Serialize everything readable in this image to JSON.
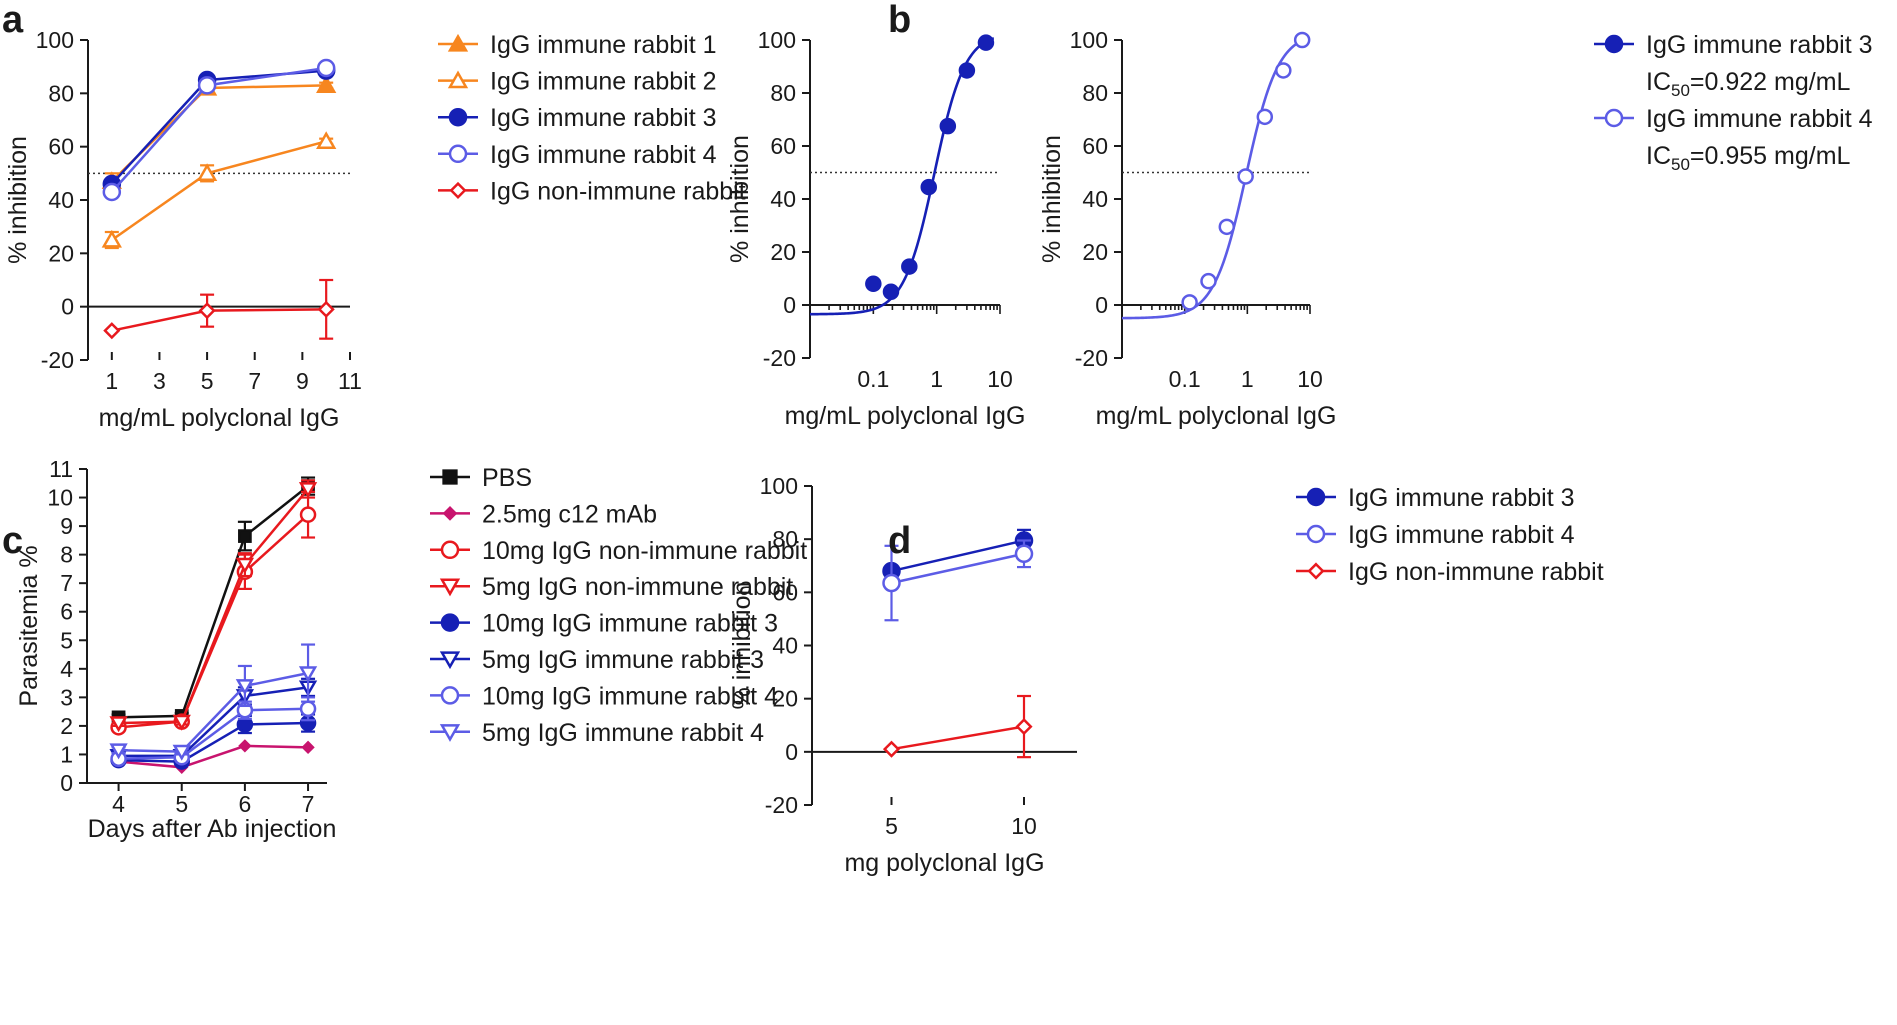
{
  "figure": {
    "letters": [
      "a",
      "b",
      "c",
      "d"
    ]
  },
  "colors": {
    "orange": "#F7861F",
    "red": "#E8191E",
    "navy": "#1620B5",
    "periwinkle": "#5C5CE6",
    "black": "#111111",
    "magenta": "#C8146E"
  },
  "chart_data": [
    {
      "id": "a",
      "type": "line",
      "xlabel": "mg/mL polyclonal IgG",
      "ylabel": "% inhibition",
      "xlim": [
        0,
        11
      ],
      "ylim": [
        -20,
        100
      ],
      "xticks": [
        1,
        3,
        5,
        7,
        9,
        11
      ],
      "yticks": [
        -20,
        0,
        20,
        40,
        60,
        80,
        100
      ],
      "reference_line_y": 50,
      "x": [
        1,
        5,
        10
      ],
      "series": [
        {
          "name": "IgG immune rabbit 1",
          "color": "orange",
          "marker": "triangle-filled",
          "values": [
            47,
            82,
            83
          ],
          "errors": [
            3,
            1,
            1
          ]
        },
        {
          "name": "IgG immune rabbit 2",
          "color": "orange",
          "marker": "triangle-open",
          "values": [
            25,
            50,
            62
          ],
          "errors": [
            3,
            3,
            1
          ]
        },
        {
          "name": "IgG immune rabbit 3",
          "color": "navy",
          "marker": "circle-filled",
          "values": [
            46,
            85,
            88.5
          ],
          "errors": [
            1,
            1,
            1
          ]
        },
        {
          "name": "IgG immune rabbit 4",
          "color": "periwinkle",
          "marker": "circle-open",
          "values": [
            43,
            83,
            89.5
          ],
          "errors": [
            1,
            1,
            1
          ]
        },
        {
          "name": "IgG non-immune rabbit",
          "color": "red",
          "marker": "diamond-open",
          "values": [
            -9,
            -1.5,
            -1
          ],
          "errors": [
            0,
            6,
            11
          ]
        }
      ]
    },
    {
      "id": "b-left",
      "type": "scatter",
      "xscale": "log",
      "xlabel": "mg/mL polyclonal IgG",
      "ylabel": "% inhibition",
      "xlim": [
        0.01,
        10
      ],
      "ylim": [
        -20,
        100
      ],
      "xticks": [
        0.1,
        1,
        10
      ],
      "xtick_labels": [
        "0.1",
        "1",
        "10"
      ],
      "yticks": [
        -20,
        0,
        20,
        40,
        60,
        80,
        100
      ],
      "reference_line_y": 50,
      "series": [
        {
          "name": "IgG immune rabbit 3",
          "color": "navy",
          "marker": "circle-filled",
          "x": [
            0.1,
            0.19,
            0.37,
            0.75,
            1.5,
            3,
            6
          ],
          "values": [
            8,
            5,
            14.5,
            44.5,
            67.5,
            88.5,
            99
          ],
          "fit": {
            "bottom": -3.5,
            "top": 103,
            "ic50": 0.922,
            "hill": 1.8
          }
        }
      ],
      "legend": [
        {
          "label": "IgG immune rabbit 3",
          "color": "navy",
          "marker": "circle-filled"
        },
        {
          "label_main": "IC",
          "label_sub": "50",
          "label_rest": "=0.922 mg/mL"
        }
      ]
    },
    {
      "id": "b-right",
      "type": "scatter",
      "xscale": "log",
      "xlabel": "mg/mL polyclonal IgG",
      "ylabel": "% inhibition",
      "xlim": [
        0.01,
        10
      ],
      "ylim": [
        -20,
        100
      ],
      "xticks": [
        0.1,
        1,
        10
      ],
      "xtick_labels": [
        "0.1",
        "1",
        "10"
      ],
      "yticks": [
        -20,
        0,
        20,
        40,
        60,
        80,
        100
      ],
      "reference_line_y": 50,
      "series": [
        {
          "name": "IgG immune rabbit 4",
          "color": "periwinkle",
          "marker": "circle-open",
          "x": [
            0.12,
            0.24,
            0.47,
            0.94,
            1.9,
            3.75,
            7.5
          ],
          "values": [
            1,
            9,
            29.5,
            48.5,
            71,
            88.5,
            100
          ],
          "fit": {
            "bottom": -5,
            "top": 103,
            "ic50": 0.955,
            "hill": 1.7
          }
        }
      ],
      "legend": [
        {
          "label": "IgG immune rabbit 4",
          "color": "periwinkle",
          "marker": "circle-open"
        },
        {
          "label_main": "IC",
          "label_sub": "50",
          "label_rest": "=0.955 mg/mL"
        }
      ]
    },
    {
      "id": "c",
      "type": "line",
      "xlabel": "Days after Ab injection",
      "ylabel": "Parasitemia %",
      "xlim": [
        3.5,
        7.3
      ],
      "ylim": [
        0,
        11
      ],
      "xticks": [
        4,
        5,
        6,
        7
      ],
      "yticks": [
        0,
        1,
        2,
        3,
        4,
        5,
        6,
        7,
        8,
        9,
        10,
        11
      ],
      "x": [
        4,
        5,
        6,
        7
      ],
      "series": [
        {
          "name": "PBS",
          "color": "black",
          "marker": "square-filled",
          "values": [
            2.3,
            2.35,
            8.65,
            10.4
          ],
          "errors": [
            0.1,
            0.1,
            0.5,
            0.3
          ]
        },
        {
          "name": "2.5mg c12 mAb",
          "color": "magenta",
          "marker": "diamond-filled",
          "values": [
            0.75,
            0.55,
            1.3,
            1.25
          ],
          "errors": [
            0,
            0,
            0,
            0
          ]
        },
        {
          "name": "10mg IgG non-immune rabbit",
          "color": "red",
          "marker": "circle-open",
          "values": [
            1.95,
            2.15,
            7.4,
            9.4
          ],
          "errors": [
            0.1,
            0.1,
            0.6,
            0.8
          ]
        },
        {
          "name": "5mg IgG non-immune rabbit",
          "color": "red",
          "marker": "triangle-down-open",
          "values": [
            2.1,
            2.15,
            7.65,
            10.3
          ],
          "errors": [
            0.1,
            0.1,
            0.4,
            0.3
          ]
        },
        {
          "name": "10mg IgG immune rabbit 3",
          "color": "navy",
          "marker": "circle-filled",
          "values": [
            0.8,
            0.75,
            2.05,
            2.1
          ],
          "errors": [
            0.1,
            0.1,
            0.3,
            0.3
          ]
        },
        {
          "name": "5mg IgG immune rabbit 3",
          "color": "navy",
          "marker": "triangle-down-open",
          "values": [
            0.95,
            0.95,
            3.05,
            3.35
          ],
          "errors": [
            0.1,
            0.1,
            0.3,
            0.3
          ]
        },
        {
          "name": "10mg IgG immune rabbit 4",
          "color": "periwinkle",
          "marker": "circle-open",
          "values": [
            0.85,
            0.9,
            2.55,
            2.6
          ],
          "errors": [
            0.1,
            0.1,
            0.3,
            0.4
          ]
        },
        {
          "name": "5mg IgG immune rabbit 4",
          "color": "periwinkle",
          "marker": "triangle-down-open",
          "values": [
            1.15,
            1.1,
            3.4,
            3.85
          ],
          "errors": [
            0.1,
            0.1,
            0.7,
            1.0
          ]
        }
      ]
    },
    {
      "id": "d",
      "type": "line",
      "xlabel": "mg polyclonal IgG",
      "ylabel": "% inhibition",
      "xlim": [
        2,
        12
      ],
      "ylim": [
        -20,
        100
      ],
      "xticks": [
        5,
        10
      ],
      "yticks": [
        -20,
        0,
        20,
        40,
        60,
        80,
        100
      ],
      "x": [
        5,
        10
      ],
      "series": [
        {
          "name": "IgG immune rabbit 3",
          "color": "navy",
          "marker": "circle-filled",
          "values": [
            68,
            79.5
          ],
          "errors": [
            0,
            4
          ]
        },
        {
          "name": "IgG immune rabbit 4",
          "color": "periwinkle",
          "marker": "circle-open",
          "values": [
            63.5,
            74.5
          ],
          "errors": [
            14,
            5
          ]
        },
        {
          "name": "IgG non-immune rabbit",
          "color": "red",
          "marker": "diamond-open",
          "values": [
            1,
            9.5
          ],
          "errors": [
            0,
            11.5
          ]
        }
      ]
    }
  ]
}
